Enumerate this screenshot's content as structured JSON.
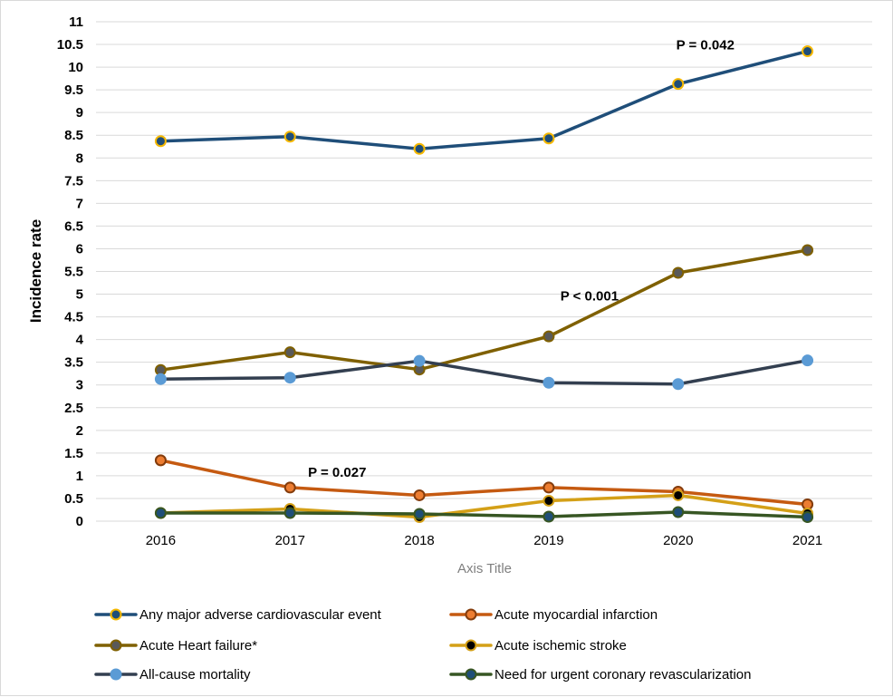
{
  "chart_data": {
    "type": "line",
    "title": "",
    "xlabel": "Axis Title",
    "ylabel": "Incidence rate",
    "categories": [
      "2016",
      "2017",
      "2018",
      "2019",
      "2020",
      "2021"
    ],
    "y_ticks": [
      "0",
      "0.5",
      "1",
      "1.5",
      "2",
      "2.5",
      "3",
      "3.5",
      "4",
      "4.5",
      "5",
      "5.5",
      "6",
      "6.5",
      "7",
      "7.5",
      "8",
      "8.5",
      "9",
      "9.5",
      "10",
      "10.5",
      "11"
    ],
    "ylim": [
      0,
      11
    ],
    "grid": true,
    "legend_position": "bottom",
    "series": [
      {
        "name": "Any major adverse cardiovascular event",
        "values": [
          8.37,
          8.47,
          8.2,
          8.43,
          9.63,
          10.35
        ],
        "line_color": "#1f4e79",
        "marker_fill": "#1f4e79",
        "marker_edge": "#f5b800"
      },
      {
        "name": "Acute myocardial infarction",
        "values": [
          1.34,
          0.74,
          0.57,
          0.74,
          0.65,
          0.37
        ],
        "line_color": "#c55a11",
        "marker_fill": "#ed7d31",
        "marker_edge": "#843c0c"
      },
      {
        "name": "Acute Heart failure*",
        "values": [
          3.33,
          3.72,
          3.34,
          4.07,
          5.47,
          5.97
        ],
        "line_color": "#7f6000",
        "marker_fill": "#595959",
        "marker_edge": "#7f6000"
      },
      {
        "name": "Acute ischemic stroke",
        "values": [
          0.18,
          0.27,
          0.09,
          0.45,
          0.57,
          0.17
        ],
        "line_color": "#d4a017",
        "marker_fill": "#000000",
        "marker_edge": "#d4a017"
      },
      {
        "name": "All-cause mortality",
        "values": [
          3.13,
          3.16,
          3.53,
          3.05,
          3.02,
          3.54
        ],
        "line_color": "#333f50",
        "marker_fill": "#5b9bd5",
        "marker_edge": "#5b9bd5"
      },
      {
        "name": "Need for urgent coronary revascularization",
        "values": [
          0.18,
          0.18,
          0.16,
          0.1,
          0.2,
          0.09
        ],
        "line_color": "#375623",
        "marker_fill": "#1f4e79",
        "marker_edge": "#375623"
      }
    ],
    "annotations": [
      {
        "text": "P = 0.042",
        "category": "2020",
        "value": 10.35
      },
      {
        "text": "P < 0.001",
        "category": "2019",
        "value": 5.1
      },
      {
        "text": "P = 0.027",
        "category": "2017",
        "value": 1.0
      }
    ]
  }
}
